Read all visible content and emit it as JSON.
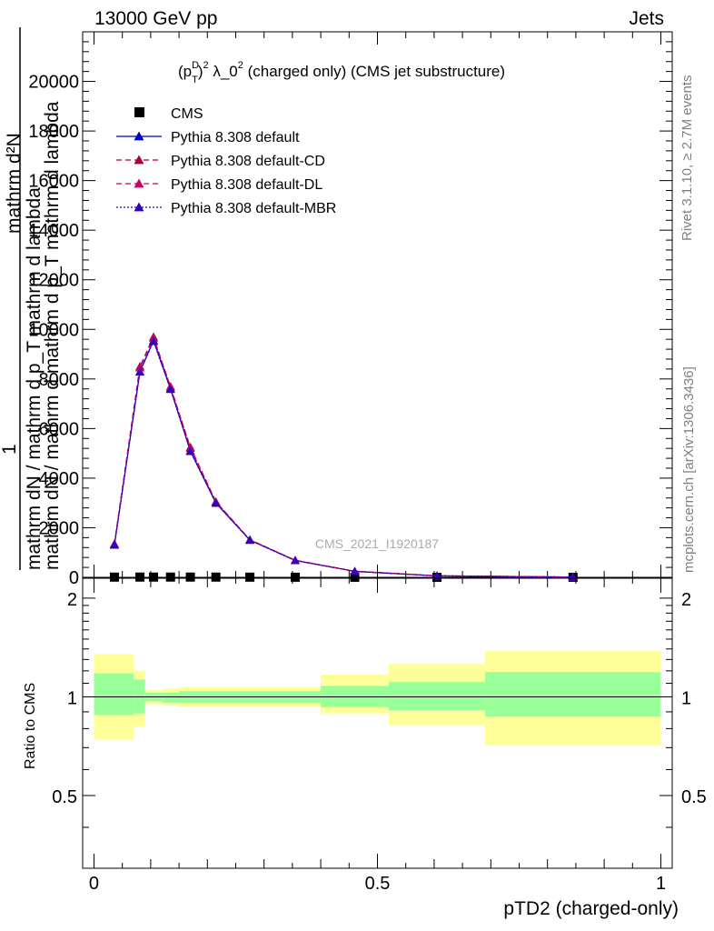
{
  "header": {
    "left": "13000 GeV pp",
    "right": "Jets"
  },
  "side_labels": {
    "rivet": "Rivet 3.1.10, ≥ 2.7M events",
    "mcplots": "mcplots.cern.ch [arXiv:1306.3436]"
  },
  "colors": {
    "cms": "#000000",
    "default": "#0000cc",
    "default_cd": "#aa0033",
    "default_dl": "#cc0066",
    "default_mbr": "#3300bb",
    "band_inner": "#99ff99",
    "band_outer": "#ffff99"
  },
  "chart_data": [
    {
      "type": "line",
      "title": "(p_T^D)^2 λ_0^2 (charged only) (CMS jet substructure)",
      "title_parts": {
        "base": "(p",
        "sup1": "D",
        "sub1": "T",
        "mid": ")",
        "sup2": "2",
        "rest": " λ_0",
        "sup3": "2",
        "tail": " (charged only) (CMS jet substructure)"
      },
      "ylabel_numerator": "1",
      "ylabel_line1": "mathrm d²N",
      "ylabel_line2": "mathrm dN / mathrm d p_T mathrm d lambda",
      "ylabel_text_top": "mathrm d²N",
      "ylabel_text_bottom": "mathrm dN / mathrm d mathrm d p_T mathrm d lambda",
      "watermark": "CMS_2021_I1920187",
      "xlim": [
        -0.02,
        1.02
      ],
      "ylim": [
        0,
        22000
      ],
      "yticks": [
        0,
        2000,
        4000,
        6000,
        8000,
        10000,
        12000,
        14000,
        16000,
        18000,
        20000
      ],
      "ytick_labels": [
        "0",
        "2000",
        "4000",
        "6000",
        "8000",
        "10000",
        "12000",
        "14000",
        "16000",
        "18000",
        "20000"
      ],
      "legend_position": "top-left",
      "x": [
        0.036,
        0.081,
        0.105,
        0.135,
        0.17,
        0.215,
        0.275,
        0.355,
        0.46,
        0.605,
        0.845
      ],
      "cms_points": [
        8,
        10,
        10,
        10,
        10,
        9,
        6,
        4,
        2,
        1,
        0.5
      ],
      "series": [
        {
          "name": "CMS",
          "style": "marker-square",
          "values": [
            8,
            10,
            10,
            10,
            10,
            9,
            6,
            4,
            2,
            1,
            0.5
          ]
        },
        {
          "name": "Pythia 8.308 default",
          "style": "solid",
          "values": [
            1300,
            8300,
            9550,
            7600,
            5100,
            3000,
            1500,
            680,
            240,
            60,
            10
          ]
        },
        {
          "name": "Pythia 8.308 default-CD",
          "style": "dashed",
          "values": [
            1350,
            8500,
            9700,
            7650,
            5250,
            3050,
            1520,
            690,
            245,
            62,
            10
          ]
        },
        {
          "name": "Pythia 8.308 default-DL",
          "style": "dashed",
          "values": [
            1340,
            8450,
            9650,
            7700,
            5200,
            3050,
            1510,
            685,
            243,
            61,
            10
          ]
        },
        {
          "name": "Pythia 8.308 default-MBR",
          "style": "dotted",
          "values": [
            1310,
            8280,
            9520,
            7580,
            5080,
            2990,
            1500,
            678,
            240,
            60,
            10
          ]
        }
      ]
    },
    {
      "type": "area",
      "ylabel": "Ratio to CMS",
      "xlabel": "pTD2 (charged-only)",
      "xlim": [
        -0.02,
        1.02
      ],
      "ylim": [
        0.3,
        2.3
      ],
      "yticks": [
        0.5,
        1,
        2
      ],
      "ytick_labels": [
        "0.5",
        "1",
        "2"
      ],
      "xticks": [
        0,
        0.5,
        1
      ],
      "xtick_labels": [
        "0",
        "0.5",
        "1"
      ],
      "reference_line": 1,
      "bins": [
        {
          "x0": 0.0,
          "x1": 0.07,
          "inner": [
            0.88,
            1.18
          ],
          "outer": [
            0.74,
            1.35
          ]
        },
        {
          "x0": 0.07,
          "x1": 0.09,
          "inner": [
            0.89,
            1.13
          ],
          "outer": [
            0.81,
            1.2
          ]
        },
        {
          "x0": 0.09,
          "x1": 0.12,
          "inner": [
            0.97,
            1.03
          ],
          "outer": [
            0.95,
            1.05
          ]
        },
        {
          "x0": 0.12,
          "x1": 0.15,
          "inner": [
            0.96,
            1.03
          ],
          "outer": [
            0.94,
            1.06
          ]
        },
        {
          "x0": 0.15,
          "x1": 0.4,
          "inner": [
            0.96,
            1.04
          ],
          "outer": [
            0.93,
            1.07
          ]
        },
        {
          "x0": 0.4,
          "x1": 0.52,
          "inner": [
            0.93,
            1.08
          ],
          "outer": [
            0.89,
            1.17
          ]
        },
        {
          "x0": 0.52,
          "x1": 0.69,
          "inner": [
            0.91,
            1.11
          ],
          "outer": [
            0.82,
            1.26
          ]
        },
        {
          "x0": 0.69,
          "x1": 1.0,
          "inner": [
            0.87,
            1.19
          ],
          "outer": [
            0.71,
            1.38
          ]
        }
      ]
    }
  ]
}
